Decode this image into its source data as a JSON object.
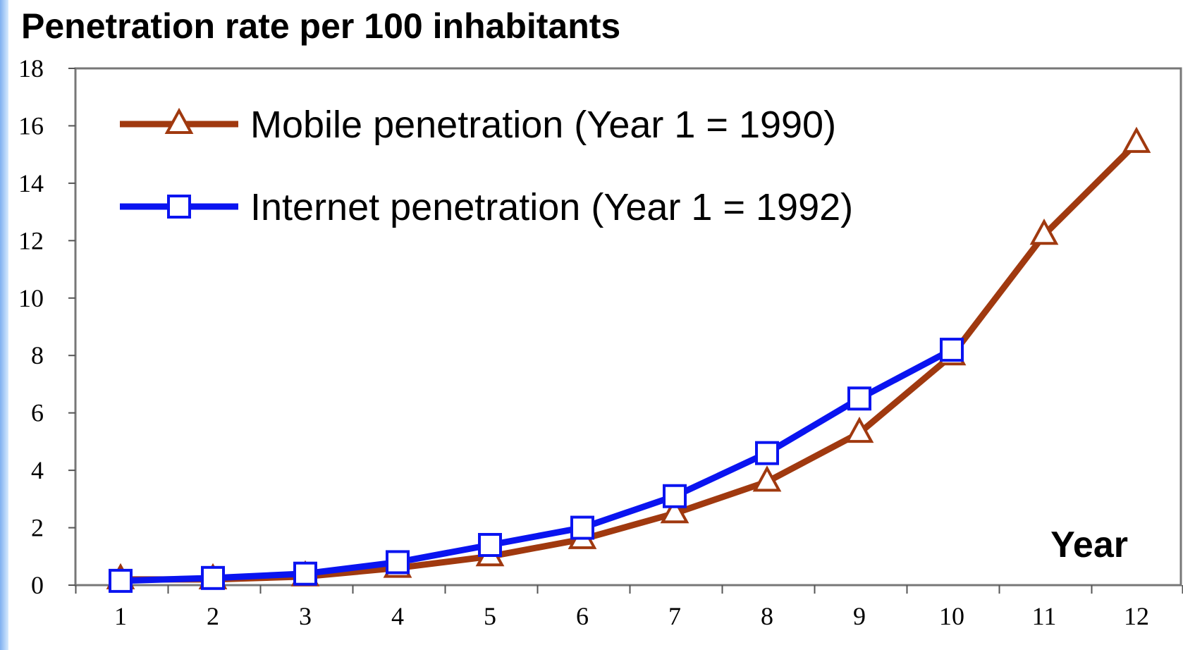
{
  "chart_data": {
    "type": "line",
    "title": "Penetration rate per 100 inhabitants",
    "x_label": "Year",
    "categories": [
      "1",
      "2",
      "3",
      "4",
      "5",
      "6",
      "7",
      "8",
      "9",
      "10",
      "11",
      "12"
    ],
    "series": [
      {
        "name": "Mobile penetration (Year 1 = 1990)",
        "color": "#a0390f",
        "marker": "triangle",
        "values": [
          0.2,
          0.2,
          0.3,
          0.6,
          1.0,
          1.6,
          2.5,
          3.6,
          5.3,
          8.0,
          12.2,
          15.4
        ]
      },
      {
        "name": "Internet penetration (Year 1 = 1992)",
        "color": "#0a14f0",
        "marker": "square",
        "values": [
          0.15,
          0.25,
          0.4,
          0.8,
          1.4,
          2.0,
          3.1,
          4.6,
          6.5,
          8.2,
          null,
          null
        ]
      }
    ],
    "ylim": [
      0,
      18
    ],
    "yticks": [
      0,
      2,
      4,
      6,
      8,
      10,
      12,
      14,
      16,
      18
    ],
    "legend": "upper left"
  }
}
